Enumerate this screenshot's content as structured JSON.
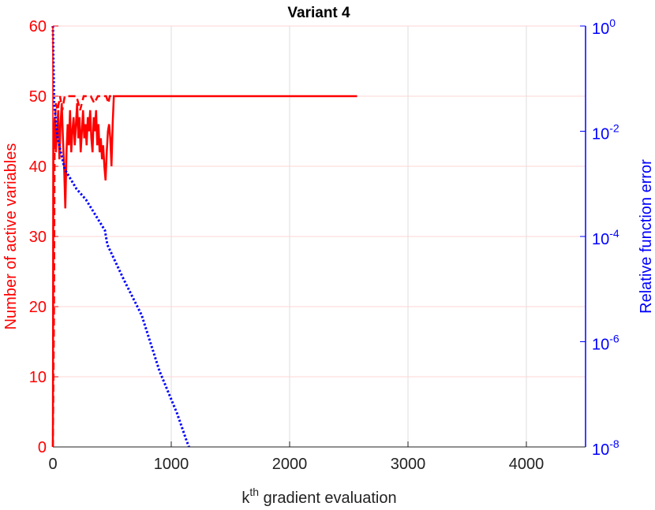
{
  "chart_data": {
    "type": "line",
    "title": "Variant 4",
    "xlabel": "k^{th} gradient evaluation",
    "ylabel": "Number of active variables",
    "y2label": "Relative function error",
    "xlim": [
      0,
      4500
    ],
    "xticks": [
      0,
      1000,
      2000,
      3000,
      4000
    ],
    "ylim": [
      0,
      60
    ],
    "yticks": [
      0,
      10,
      20,
      30,
      40,
      50,
      60
    ],
    "y2lim": [
      1e-08,
      1
    ],
    "y2scale": "log",
    "y2ticks": [
      {
        "value": 1e-08,
        "label": "10^{-8}"
      },
      {
        "value": 1e-06,
        "label": "10^{-6}"
      },
      {
        "value": 0.0001,
        "label": "10^{-4}"
      },
      {
        "value": 0.01,
        "label": "10^{-2}"
      },
      {
        "value": 1,
        "label": "10^{0}"
      }
    ],
    "grid": true,
    "xgrid_color": "#dddddd",
    "ygrid_color": "#ffd6d6",
    "ycolor": "#ff0000",
    "y2color": "#0000ff",
    "series": [
      {
        "color": "#ff0000",
        "linestyle": "solid",
        "axis": "y",
        "x": [
          0,
          5,
          15,
          25,
          35,
          45,
          55,
          65,
          75,
          85,
          95,
          105,
          115,
          125,
          135,
          145,
          155,
          165,
          175,
          185,
          195,
          205,
          215,
          225,
          235,
          245,
          255,
          265,
          275,
          285,
          295,
          305,
          315,
          325,
          335,
          345,
          355,
          365,
          375,
          385,
          395,
          405,
          415,
          425,
          435,
          445,
          455,
          465,
          475,
          485,
          495,
          505,
          515,
          2570
        ],
        "values": [
          0,
          44,
          47,
          42,
          45,
          48,
          41,
          46,
          49,
          44,
          40,
          34,
          42,
          46,
          43,
          48,
          42,
          45,
          47,
          43,
          46,
          49,
          44,
          47,
          42,
          45,
          48,
          44,
          46,
          43,
          47,
          45,
          48,
          44,
          42,
          47,
          45,
          48,
          43,
          46,
          42,
          44,
          41,
          43,
          40,
          38,
          42,
          45,
          46,
          44,
          40,
          46,
          50,
          50
        ]
      },
      {
        "color": "#ff0000",
        "linestyle": "dashed",
        "axis": "y",
        "x": [
          0,
          10,
          15,
          25,
          40,
          60,
          80,
          100,
          150,
          200,
          230,
          260,
          320,
          350,
          380,
          450,
          470,
          480,
          510
        ],
        "values": [
          0,
          20,
          45,
          49,
          48,
          50,
          48,
          50,
          50,
          50,
          48,
          50,
          50,
          49,
          50,
          50,
          49,
          50,
          50
        ]
      },
      {
        "color": "#0000ff",
        "linestyle": "dotted",
        "axis": "y2",
        "x": [
          0,
          10,
          40,
          100,
          200,
          280,
          440,
          460,
          600,
          750,
          900,
          1050,
          1130,
          1150
        ],
        "values": [
          1,
          0.035,
          0.0074,
          0.0019,
          0.0008,
          0.0005,
          0.00013,
          7e-05,
          1.5e-05,
          3.2e-06,
          2.8e-07,
          4.3e-08,
          1.3e-08,
          1e-08
        ]
      }
    ]
  }
}
